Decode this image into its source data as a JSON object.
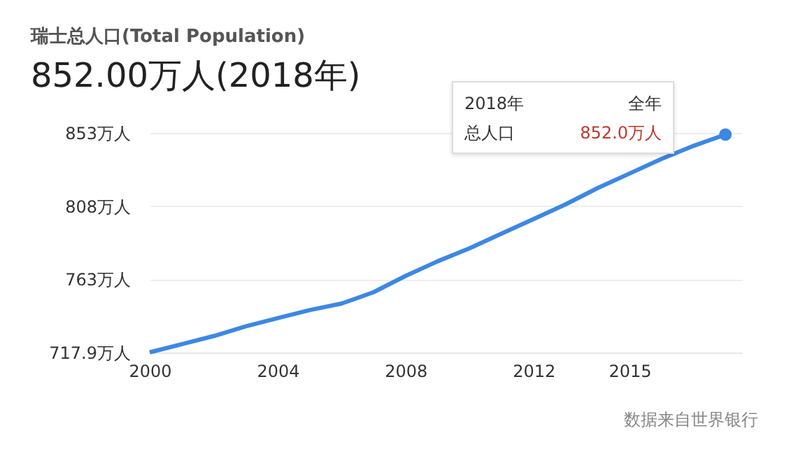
{
  "chart_data": {
    "type": "line",
    "title": "瑞士总人口(Total Population)",
    "subtitle": "852.00万人(2018年)",
    "x": [
      2000,
      2001,
      2002,
      2003,
      2004,
      2005,
      2006,
      2007,
      2008,
      2009,
      2010,
      2011,
      2012,
      2013,
      2014,
      2015,
      2016,
      2017,
      2018
    ],
    "series": [
      {
        "color": "#3d87e4",
        "values": [
          718,
          723,
          728,
          734,
          739,
          744,
          748,
          755,
          765,
          774,
          782,
          791,
          800,
          809,
          819,
          828,
          837,
          845,
          852.0
        ]
      },
      {
        "type": "scatter",
        "color": "#3d87e4",
        "x": [
          2018
        ],
        "values": [
          852.0
        ]
      }
    ],
    "xlim": [
      2000,
      2018.5
    ],
    "xticks": [
      2000,
      2004,
      2008,
      2012,
      2015
    ],
    "ylim": [
      717.9,
      853
    ],
    "yticks": [
      {
        "value": 717.9,
        "label": "717.9万人"
      },
      {
        "value": 763,
        "label": "763万人"
      },
      {
        "value": 808,
        "label": "808万人"
      },
      {
        "value": 853,
        "label": "853万人"
      }
    ],
    "grid": "y",
    "annotations": [
      "2018年",
      "全年",
      "总人口",
      "852.0万人",
      "数据来自世界银行"
    ]
  }
}
